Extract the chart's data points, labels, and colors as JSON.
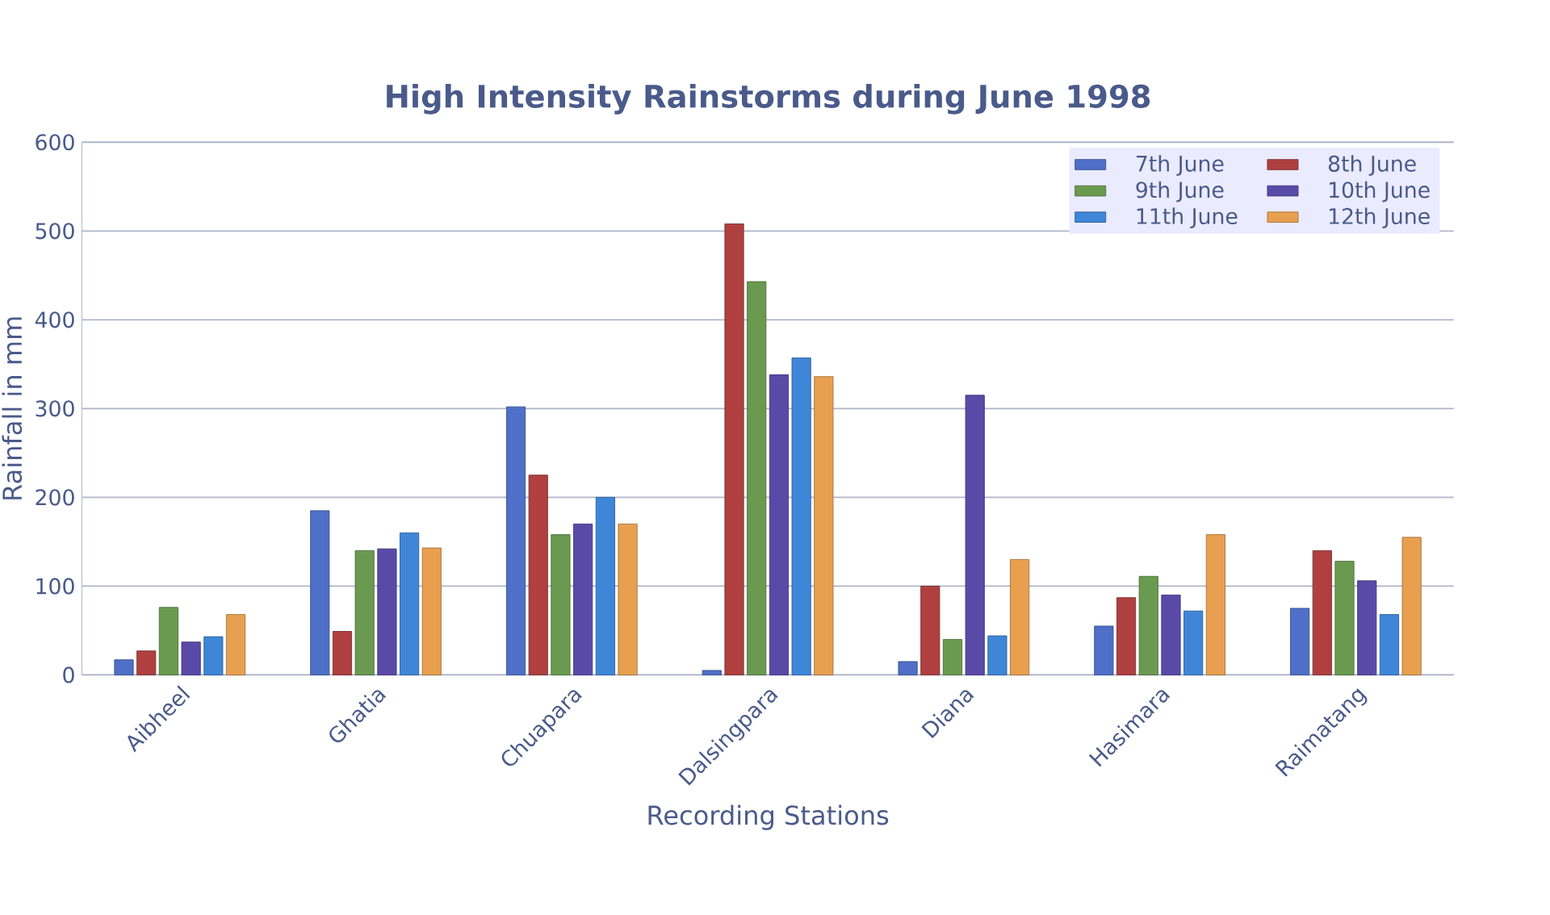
{
  "chart_data": {
    "type": "bar",
    "title": "High Intensity Rainstorms during June 1998",
    "xlabel": "Recording Stations",
    "ylabel": "Rainfall in mm",
    "categories": [
      "Aibheel",
      "Ghatia",
      "Chuapara",
      "Dalsingpara",
      "Diana",
      "Hasimara",
      "Raimatang"
    ],
    "series": [
      {
        "name": "7th June",
        "color": "#4f6fc8",
        "values": [
          17,
          185,
          302,
          5,
          15,
          55,
          75
        ]
      },
      {
        "name": "8th June",
        "color": "#b04040",
        "values": [
          27,
          49,
          225,
          508,
          100,
          87,
          140
        ]
      },
      {
        "name": "9th June",
        "color": "#6a9a50",
        "values": [
          76,
          140,
          158,
          443,
          40,
          111,
          128
        ]
      },
      {
        "name": "10th June",
        "color": "#5a4aa8",
        "values": [
          37,
          142,
          170,
          338,
          315,
          90,
          106
        ]
      },
      {
        "name": "11th June",
        "color": "#3f86d8",
        "values": [
          43,
          160,
          200,
          357,
          44,
          72,
          68
        ]
      },
      {
        "name": "12th June",
        "color": "#e8a050",
        "values": [
          68,
          143,
          170,
          336,
          130,
          158,
          155
        ]
      }
    ],
    "ylim": [
      0,
      600
    ],
    "yticks": [
      0,
      100,
      200,
      300,
      400,
      500,
      600
    ],
    "grid": "y",
    "legend": "top right"
  }
}
